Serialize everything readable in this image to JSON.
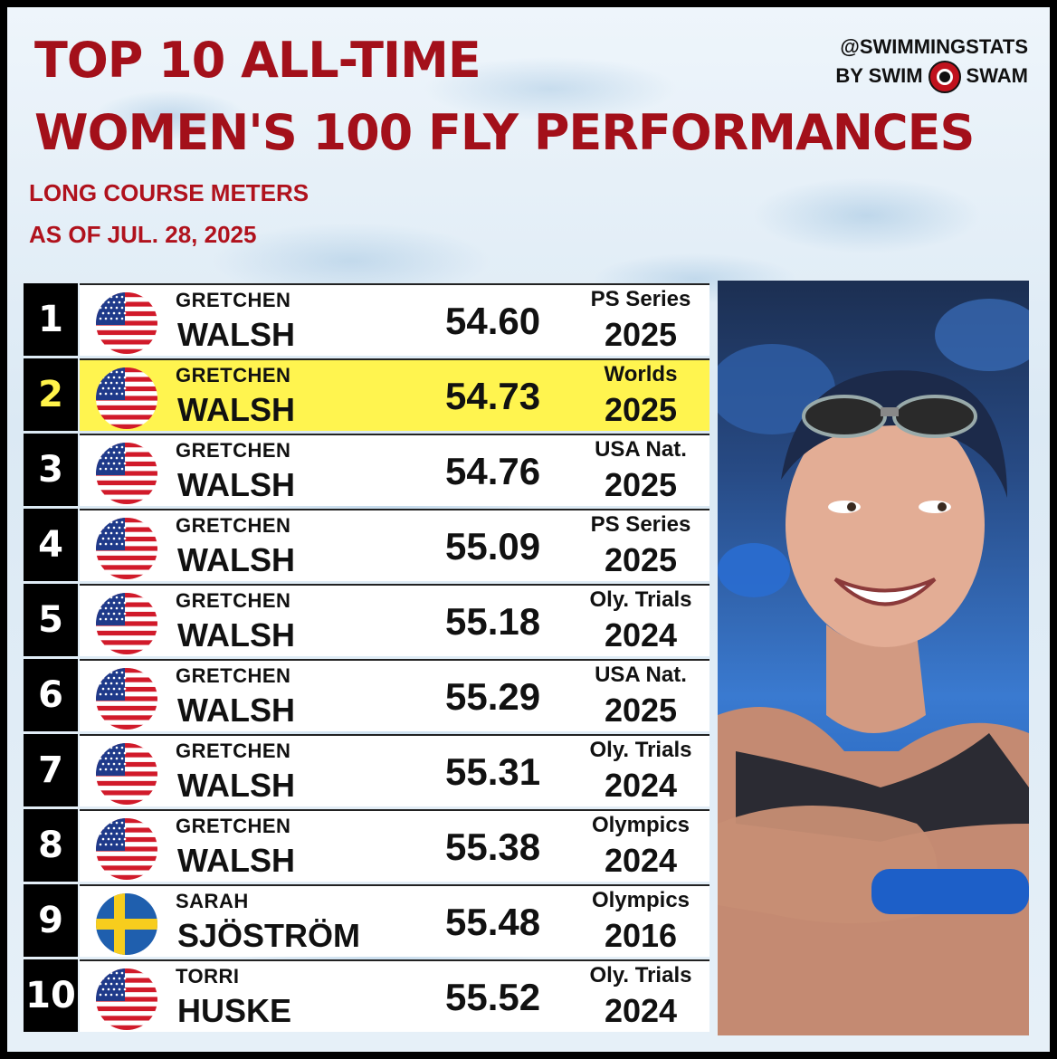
{
  "header": {
    "title_line1": "TOP 10 ALL-TIME",
    "title_line2": "WOMEN'S 100 FLY PERFORMANCES",
    "subtitle_line1": "LONG COURSE METERS",
    "subtitle_line2": "AS OF JUL. 28, 2025"
  },
  "brand": {
    "handle": "@SWIMMINGSTATS",
    "by": "BY SWIM",
    "swam": "SWAM"
  },
  "rows": [
    {
      "rank": "1",
      "first": "GRETCHEN",
      "last": "WALSH",
      "time": "54.60",
      "meet": "PS Series",
      "year": "2025",
      "country": "USA",
      "highlight": false
    },
    {
      "rank": "2",
      "first": "GRETCHEN",
      "last": "WALSH",
      "time": "54.73",
      "meet": "Worlds",
      "year": "2025",
      "country": "USA",
      "highlight": true
    },
    {
      "rank": "3",
      "first": "GRETCHEN",
      "last": "WALSH",
      "time": "54.76",
      "meet": "USA Nat.",
      "year": "2025",
      "country": "USA",
      "highlight": false
    },
    {
      "rank": "4",
      "first": "GRETCHEN",
      "last": "WALSH",
      "time": "55.09",
      "meet": "PS Series",
      "year": "2025",
      "country": "USA",
      "highlight": false
    },
    {
      "rank": "5",
      "first": "GRETCHEN",
      "last": "WALSH",
      "time": "55.18",
      "meet": "Oly. Trials",
      "year": "2024",
      "country": "USA",
      "highlight": false
    },
    {
      "rank": "6",
      "first": "GRETCHEN",
      "last": "WALSH",
      "time": "55.29",
      "meet": "USA Nat.",
      "year": "2025",
      "country": "USA",
      "highlight": false
    },
    {
      "rank": "7",
      "first": "GRETCHEN",
      "last": "WALSH",
      "time": "55.31",
      "meet": "Oly. Trials",
      "year": "2024",
      "country": "USA",
      "highlight": false
    },
    {
      "rank": "8",
      "first": "GRETCHEN",
      "last": "WALSH",
      "time": "55.38",
      "meet": "Olympics",
      "year": "2024",
      "country": "USA",
      "highlight": false
    },
    {
      "rank": "9",
      "first": "SARAH",
      "last": "SJÖSTRÖM",
      "time": "55.48",
      "meet": "Olympics",
      "year": "2016",
      "country": "SWE",
      "highlight": false
    },
    {
      "rank": "10",
      "first": "TORRI",
      "last": "HUSKE",
      "time": "55.52",
      "meet": "Oly. Trials",
      "year": "2024",
      "country": "USA",
      "highlight": false
    }
  ],
  "colors": {
    "title": "#a3101a",
    "highlight": "#fff44f",
    "rank_highlight": "#fff34a"
  }
}
